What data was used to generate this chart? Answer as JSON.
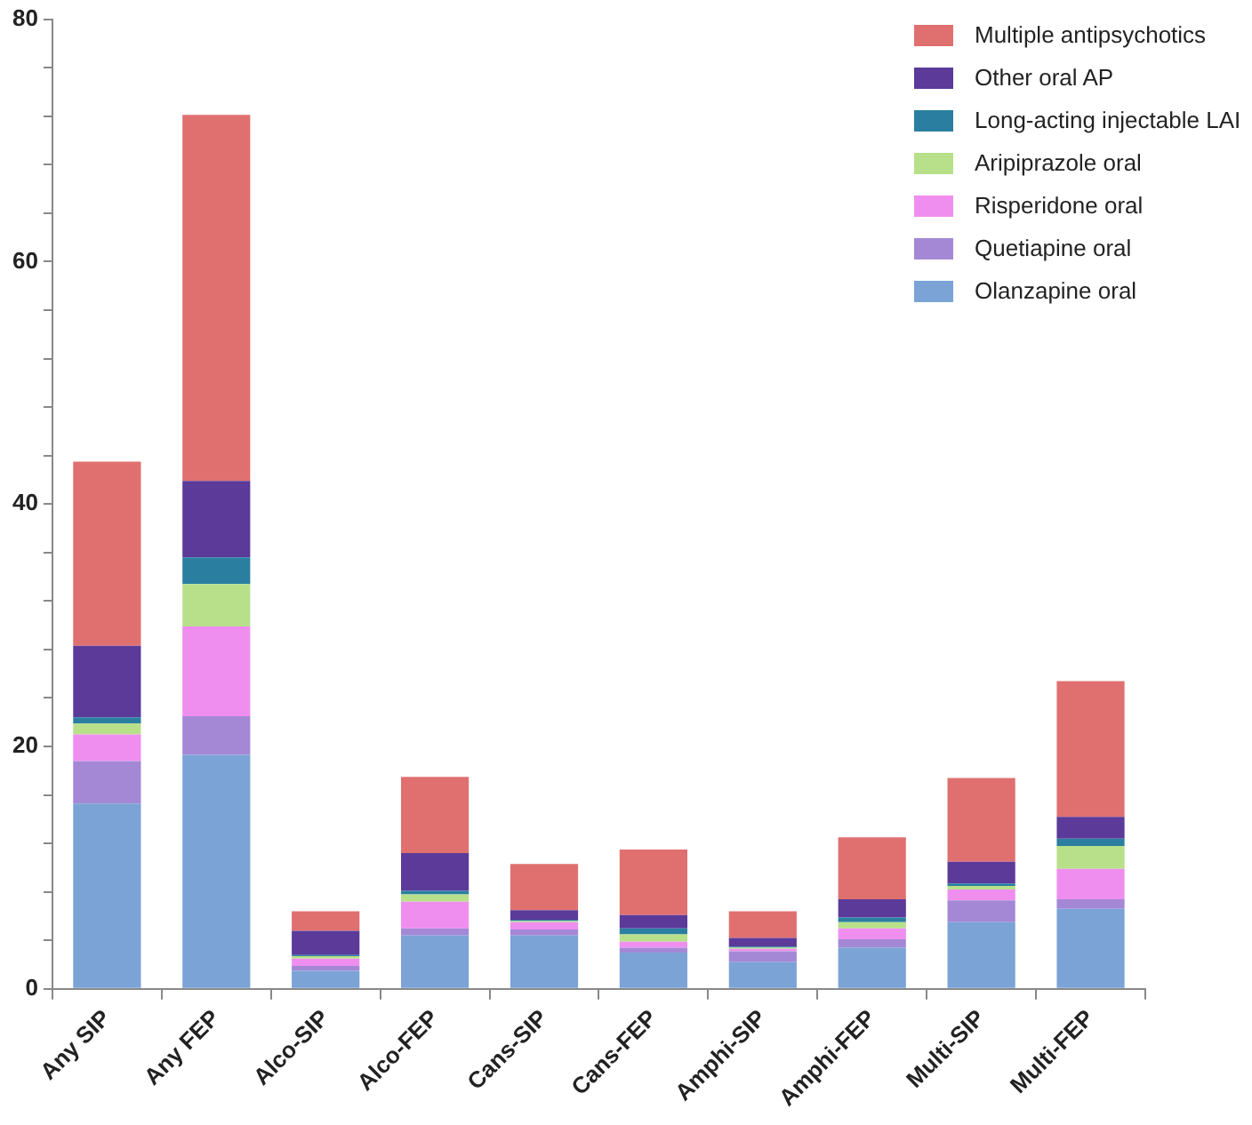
{
  "chart_data": {
    "type": "bar",
    "stacked": true,
    "legend": "top right",
    "grid": false,
    "categories": [
      "Any SIP",
      "Any FEP",
      "Alco-SIP",
      "Alco-FEP",
      "Cans-SIP",
      "Cans-FEP",
      "Amphi-SIP",
      "Amphi-FEP",
      "Multi-SIP",
      "Multi-FEP"
    ],
    "ylim": [
      0,
      80
    ],
    "yticks": [
      0,
      {
        "value": 4,
        "label": null
      },
      {
        "value": 8,
        "label": null
      },
      {
        "value": 12,
        "label": null
      },
      {
        "value": 16,
        "label": null
      },
      20,
      {
        "value": 24,
        "label": null
      },
      {
        "value": 28,
        "label": null
      },
      {
        "value": 32,
        "label": null
      },
      {
        "value": 36,
        "label": null
      },
      40,
      {
        "value": 44,
        "label": null
      },
      {
        "value": 48,
        "label": null
      },
      {
        "value": 52,
        "label": null
      },
      {
        "value": 56,
        "label": null
      },
      60,
      {
        "value": 64,
        "label": null
      },
      {
        "value": 68,
        "label": null
      },
      {
        "value": 72,
        "label": null
      },
      {
        "value": 76,
        "label": null
      },
      80
    ],
    "series": [
      {
        "name": "Olanzapine oral",
        "color": "#7ba3d6",
        "values": [
          15.3,
          19.3,
          1.5,
          4.4,
          4.4,
          3.0,
          2.2,
          3.4,
          5.5,
          6.6
        ]
      },
      {
        "name": "Quetiapine oral",
        "color": "#a488d6",
        "values": [
          3.5,
          3.2,
          0.4,
          0.6,
          0.5,
          0.4,
          0.9,
          0.7,
          1.8,
          0.8
        ]
      },
      {
        "name": "Risperidone oral",
        "color": "#f08ef0",
        "values": [
          2.2,
          7.4,
          0.6,
          2.2,
          0.6,
          0.5,
          0.2,
          0.9,
          0.9,
          2.5
        ]
      },
      {
        "name": "Aripiprazole oral",
        "color": "#b8e08a",
        "values": [
          0.9,
          3.5,
          0.2,
          0.6,
          0.1,
          0.6,
          0.1,
          0.5,
          0.3,
          1.9
        ]
      },
      {
        "name": "Long-acting injectable LAI",
        "color": "#2a7fa0",
        "values": [
          0.5,
          2.2,
          0.1,
          0.3,
          0.1,
          0.5,
          0.1,
          0.4,
          0.2,
          0.6
        ]
      },
      {
        "name": "Other oral AP",
        "color": "#5b3a9a",
        "values": [
          5.9,
          6.3,
          2.0,
          3.1,
          0.8,
          1.1,
          0.7,
          1.5,
          1.8,
          1.8
        ]
      },
      {
        "name": "Multiple antipsychotics",
        "color": "#e07070",
        "values": [
          15.2,
          30.2,
          1.6,
          6.3,
          3.8,
          5.4,
          2.2,
          5.1,
          6.9,
          11.2
        ]
      }
    ]
  }
}
